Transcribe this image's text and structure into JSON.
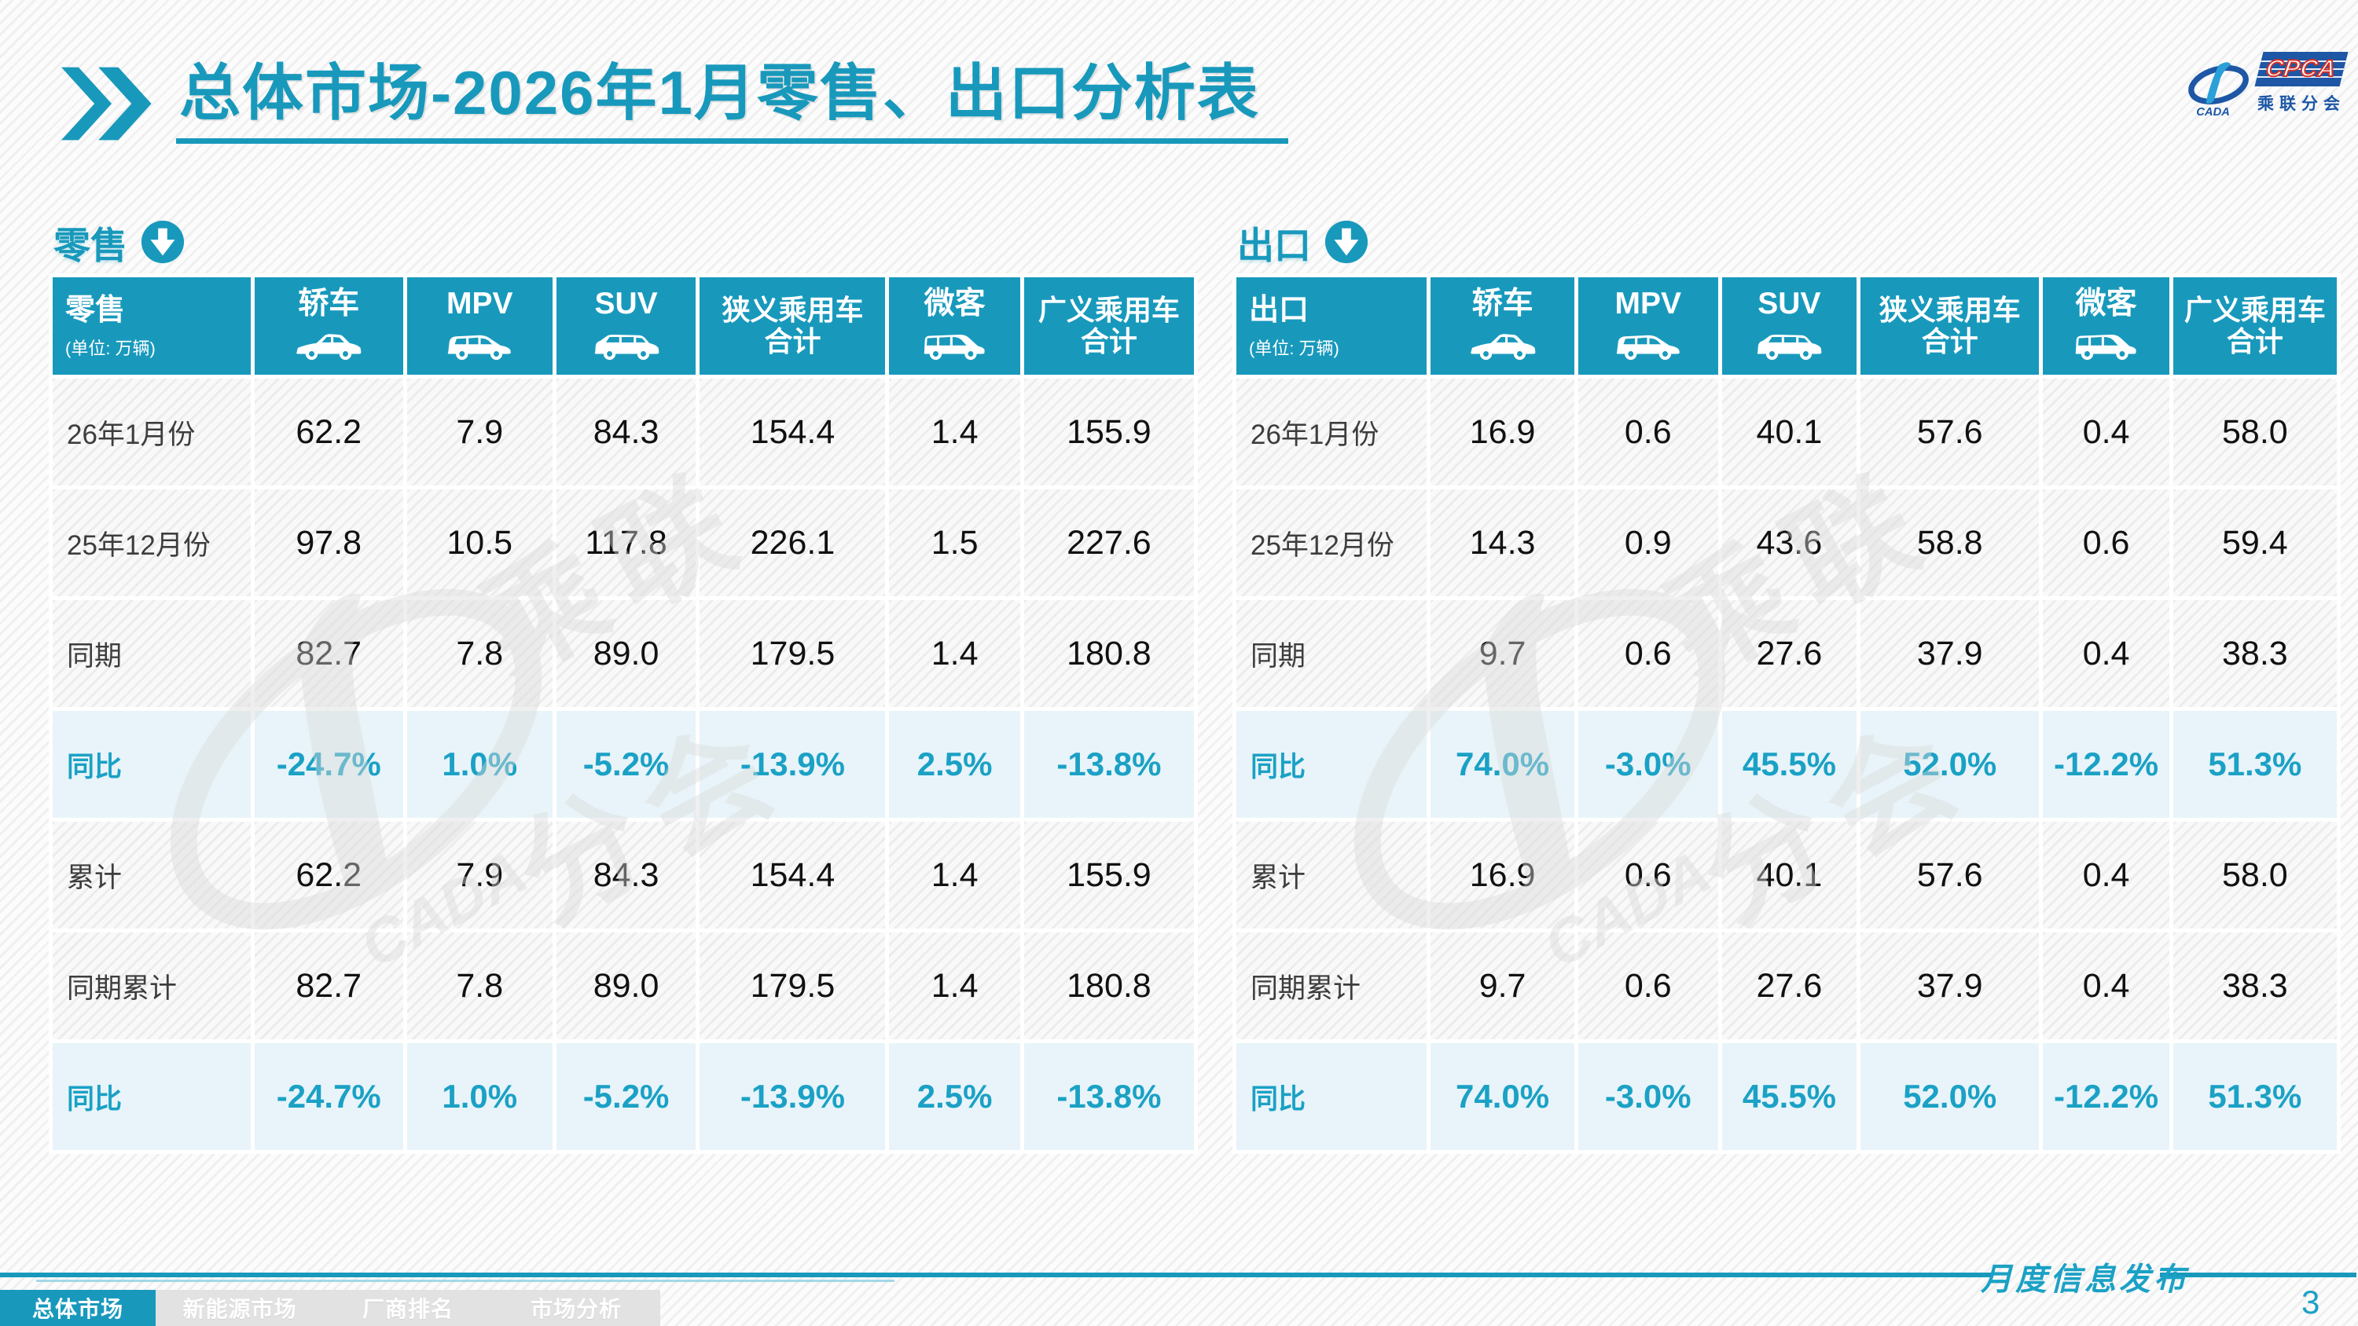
{
  "header": {
    "title": "总体市场-2026年1月零售、出口分析表"
  },
  "logo": {
    "cpca": "CPCA",
    "cada": "CADA",
    "subtitle": "乘联分会"
  },
  "colors": {
    "teal": "#1899bc",
    "teal_bright": "#1ba1c5",
    "highlight_row_bg": "#e8f4f9",
    "logo_blue": "#1d57a5",
    "logo_red": "#d33027"
  },
  "tables": [
    {
      "section_label": "零售",
      "section_icon": "arrow-down-circle-icon",
      "corner_label": "零售",
      "unit_label": "(单位: 万辆)",
      "columns": [
        {
          "label": "轿车",
          "icon": "sedan-icon"
        },
        {
          "label": "MPV",
          "icon": "mpv-icon"
        },
        {
          "label": "SUV",
          "icon": "suv-icon"
        },
        {
          "label": "狭义乘用车",
          "label2": "合计",
          "icon": null
        },
        {
          "label": "微客",
          "icon": "microvan-icon"
        },
        {
          "label": "广义乘用车",
          "label2": "合计",
          "icon": null
        }
      ],
      "rows": [
        {
          "label": "26年1月份",
          "values": [
            "62.2",
            "7.9",
            "84.3",
            "154.4",
            "1.4",
            "155.9"
          ],
          "highlight": false
        },
        {
          "label": "25年12月份",
          "values": [
            "97.8",
            "10.5",
            "117.8",
            "226.1",
            "1.5",
            "227.6"
          ],
          "highlight": false
        },
        {
          "label": "同期",
          "values": [
            "82.7",
            "7.8",
            "89.0",
            "179.5",
            "1.4",
            "180.8"
          ],
          "highlight": false
        },
        {
          "label": "同比",
          "values": [
            "-24.7%",
            "1.0%",
            "-5.2%",
            "-13.9%",
            "2.5%",
            "-13.8%"
          ],
          "highlight": true
        },
        {
          "label": "累计",
          "values": [
            "62.2",
            "7.9",
            "84.3",
            "154.4",
            "1.4",
            "155.9"
          ],
          "highlight": false
        },
        {
          "label": "同期累计",
          "values": [
            "82.7",
            "7.8",
            "89.0",
            "179.5",
            "1.4",
            "180.8"
          ],
          "highlight": false
        },
        {
          "label": "同比",
          "values": [
            "-24.7%",
            "1.0%",
            "-5.2%",
            "-13.9%",
            "2.5%",
            "-13.8%"
          ],
          "highlight": true
        }
      ]
    },
    {
      "section_label": "出口",
      "section_icon": "arrow-down-circle-icon",
      "corner_label": "出口",
      "unit_label": "(单位: 万辆)",
      "columns": [
        {
          "label": "轿车",
          "icon": "sedan-icon"
        },
        {
          "label": "MPV",
          "icon": "mpv-icon"
        },
        {
          "label": "SUV",
          "icon": "suv-icon"
        },
        {
          "label": "狭义乘用车",
          "label2": "合计",
          "icon": null
        },
        {
          "label": "微客",
          "icon": "microvan-icon"
        },
        {
          "label": "广义乘用车",
          "label2": "合计",
          "icon": null
        }
      ],
      "rows": [
        {
          "label": "26年1月份",
          "values": [
            "16.9",
            "0.6",
            "40.1",
            "57.6",
            "0.4",
            "58.0"
          ],
          "highlight": false
        },
        {
          "label": "25年12月份",
          "values": [
            "14.3",
            "0.9",
            "43.6",
            "58.8",
            "0.6",
            "59.4"
          ],
          "highlight": false
        },
        {
          "label": "同期",
          "values": [
            "9.7",
            "0.6",
            "27.6",
            "37.9",
            "0.4",
            "38.3"
          ],
          "highlight": false
        },
        {
          "label": "同比",
          "values": [
            "74.0%",
            "-3.0%",
            "45.5%",
            "52.0%",
            "-12.2%",
            "51.3%"
          ],
          "highlight": true
        },
        {
          "label": "累计",
          "values": [
            "16.9",
            "0.6",
            "40.1",
            "57.6",
            "0.4",
            "58.0"
          ],
          "highlight": false
        },
        {
          "label": "同期累计",
          "values": [
            "9.7",
            "0.6",
            "27.6",
            "37.9",
            "0.4",
            "38.3"
          ],
          "highlight": false
        },
        {
          "label": "同比",
          "values": [
            "74.0%",
            "-3.0%",
            "45.5%",
            "52.0%",
            "-12.2%",
            "51.3%"
          ],
          "highlight": true
        }
      ]
    }
  ],
  "nav": {
    "tabs": [
      {
        "label": "总体市场",
        "active": true
      },
      {
        "label": "新能源市场",
        "active": false
      },
      {
        "label": "厂商排名",
        "active": false
      },
      {
        "label": "市场分析",
        "active": false
      }
    ]
  },
  "footer": {
    "note": "月度信息发布",
    "page_number": "3"
  }
}
